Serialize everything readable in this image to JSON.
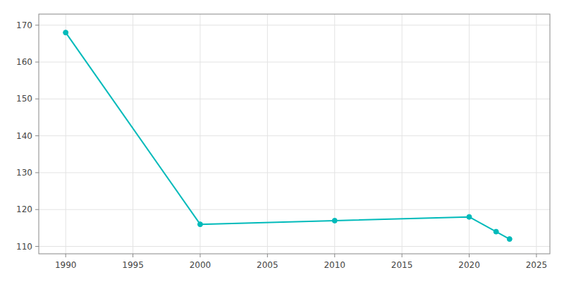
{
  "chart_data": {
    "type": "line",
    "x": [
      1990,
      2000,
      2010,
      2020,
      2022,
      2023
    ],
    "values": [
      168,
      116,
      117,
      118,
      114,
      112
    ],
    "color": "#00BABA",
    "marker": "circle",
    "xlim": [
      1988,
      2026
    ],
    "ylim": [
      108,
      173
    ],
    "xticks": [
      1990,
      1995,
      2000,
      2005,
      2010,
      2015,
      2020,
      2025
    ],
    "yticks": [
      110,
      120,
      130,
      140,
      150,
      160,
      170
    ],
    "grid": true
  }
}
